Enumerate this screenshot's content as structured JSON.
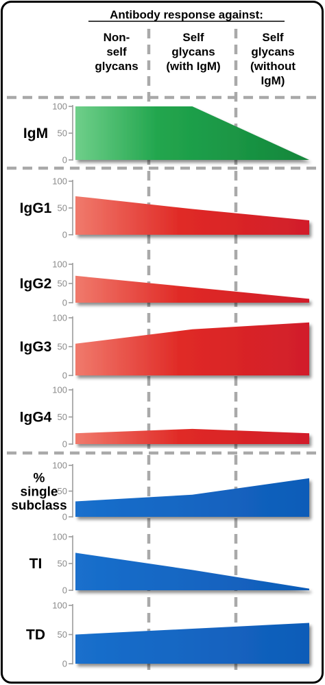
{
  "header": {
    "title": "Antibody response against:",
    "columns": [
      {
        "lines": [
          "Non-",
          "self",
          "glycans"
        ]
      },
      {
        "lines": [
          "Self",
          "glycans",
          "(with IgM)"
        ]
      },
      {
        "lines": [
          "Self",
          "glycans",
          "(without",
          "IgM)"
        ]
      }
    ]
  },
  "colors": {
    "IgM": "#1a9a46",
    "IgG": "#e0232a",
    "blue": "#1464c0",
    "axis": "#9b9b9b",
    "dash": "#a9a9a9",
    "frame": "#000000"
  },
  "chart_data": [
    {
      "type": "area",
      "label_lines": [
        "IgM"
      ],
      "color_key": "IgM",
      "x": [
        0,
        0.5,
        1
      ],
      "values": [
        100,
        100,
        0
      ],
      "yticks": [
        0,
        50,
        100
      ],
      "ylim": [
        0,
        100
      ]
    },
    {
      "type": "area",
      "label_lines": [
        "IgG1"
      ],
      "color_key": "IgG",
      "x": [
        0,
        0.5,
        1
      ],
      "values": [
        72,
        48,
        27
      ],
      "yticks": [
        0,
        50,
        100
      ],
      "ylim": [
        0,
        100
      ]
    },
    {
      "type": "area",
      "label_lines": [
        "IgG2"
      ],
      "color_key": "IgG",
      "x": [
        0,
        0.5,
        1
      ],
      "values": [
        70,
        40,
        10
      ],
      "yticks": [
        0,
        50,
        100
      ],
      "ylim": [
        0,
        100
      ]
    },
    {
      "type": "area",
      "label_lines": [
        "IgG3"
      ],
      "color_key": "IgG",
      "x": [
        0,
        0.5,
        1
      ],
      "values": [
        55,
        80,
        92
      ],
      "yticks": [
        0,
        50,
        100
      ],
      "ylim": [
        0,
        100
      ]
    },
    {
      "type": "area",
      "label_lines": [
        "IgG4"
      ],
      "color_key": "IgG",
      "x": [
        0,
        0.5,
        1
      ],
      "values": [
        20,
        28,
        20
      ],
      "yticks": [
        0,
        50,
        100
      ],
      "ylim": [
        0,
        100
      ]
    },
    {
      "type": "area",
      "label_lines": [
        "%",
        "single",
        "subclass"
      ],
      "color_key": "blue",
      "x": [
        0,
        0.5,
        1
      ],
      "values": [
        30,
        43,
        75
      ],
      "yticks": [
        0,
        50,
        100
      ],
      "ylim": [
        0,
        100
      ]
    },
    {
      "type": "area",
      "label_lines": [
        "TI"
      ],
      "color_key": "blue",
      "x": [
        0,
        0.5,
        1
      ],
      "values": [
        70,
        38,
        3
      ],
      "yticks": [
        0,
        50,
        100
      ],
      "ylim": [
        0,
        100
      ]
    },
    {
      "type": "area",
      "label_lines": [
        "TD"
      ],
      "color_key": "blue",
      "x": [
        0,
        0.5,
        1
      ],
      "values": [
        50,
        60,
        70
      ],
      "yticks": [
        0,
        50,
        100
      ],
      "ylim": [
        0,
        100
      ]
    }
  ]
}
